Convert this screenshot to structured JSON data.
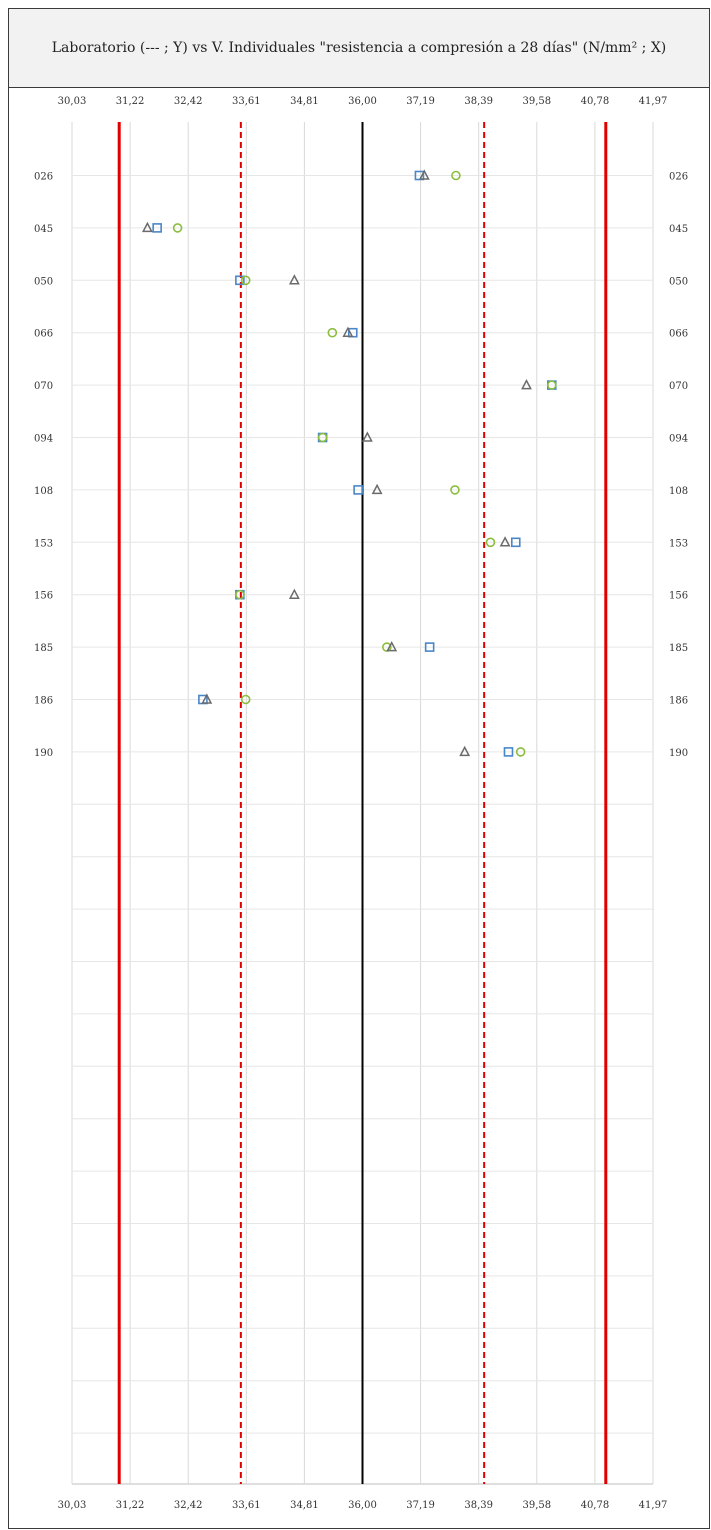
{
  "chart_data": {
    "type": "scatter",
    "title": "Laboratorio (--- ; Y) vs V. Individuales \"resistencia a compresión a 28 días\" (N/mm² ; X)",
    "x_ticks": [
      "30,03",
      "31,22",
      "32,42",
      "33,61",
      "34,81",
      "36,00",
      "37,19",
      "38,39",
      "39,58",
      "40,78",
      "41,97"
    ],
    "xlim": [
      30.03,
      41.97
    ],
    "categories": [
      "026",
      "045",
      "050",
      "066",
      "070",
      "094",
      "108",
      "153",
      "156",
      "185",
      "186",
      "190"
    ],
    "total_rows": 25,
    "reference_lines": [
      {
        "value": 31.0,
        "style": "solid",
        "color": "#e00000"
      },
      {
        "value": 33.5,
        "style": "dashed",
        "color": "#e00000"
      },
      {
        "value": 36.0,
        "style": "solid",
        "color": "#000000"
      },
      {
        "value": 38.5,
        "style": "dashed",
        "color": "#e00000"
      },
      {
        "value": 41.0,
        "style": "solid",
        "color": "#e00000"
      }
    ],
    "series": [
      {
        "marker": "square",
        "color": "#4a86c8",
        "values": [
          37.17,
          31.78,
          33.48,
          35.8,
          39.89,
          35.18,
          35.91,
          39.15,
          33.48,
          37.38,
          32.72,
          39.0
        ]
      },
      {
        "marker": "circle",
        "color": "#8cbd3f",
        "values": [
          37.92,
          32.2,
          33.6,
          35.38,
          39.89,
          35.18,
          37.9,
          38.63,
          33.48,
          36.5,
          33.6,
          39.25
        ]
      },
      {
        "marker": "triangle",
        "color": "#6b6b6b",
        "values": [
          37.27,
          31.58,
          34.6,
          35.7,
          39.37,
          36.1,
          36.3,
          38.93,
          34.6,
          36.6,
          32.8,
          38.1
        ]
      }
    ]
  }
}
